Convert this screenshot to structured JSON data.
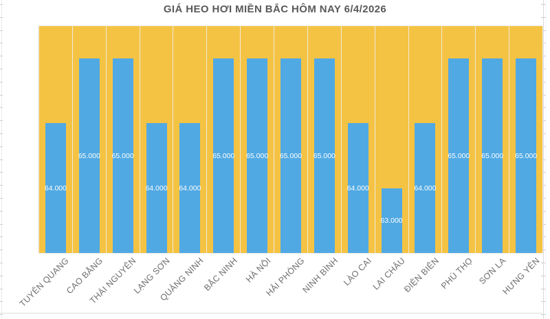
{
  "chart_data": {
    "type": "bar",
    "title": "GIÁ HEO HƠI MIỀN BẮC HÔM NAY 6/4/2026",
    "categories": [
      "TUYÊN QUANG",
      "CAO BẰNG",
      "THÁI NGUYÊN",
      "LẠNG SƠN",
      "QUẢNG NINH",
      "BẮC NINH",
      "HÀ NỘI",
      "HẢI PHÒNG",
      "NINH BÌNH",
      "LÀO CAI",
      "LAI CHÂU",
      "ĐIỆN BIÊN",
      "PHÚ THỌ",
      "SƠN LA",
      "HƯNG YÊN"
    ],
    "values": [
      64000,
      65000,
      65000,
      64000,
      64000,
      65000,
      65000,
      65000,
      65000,
      64000,
      63000,
      64000,
      65000,
      65000,
      65000
    ],
    "value_labels": [
      "64.000",
      "65.000",
      "65.000",
      "64.000",
      "64.000",
      "65.000",
      "65.000",
      "65.000",
      "65.000",
      "64.000",
      "63.000",
      "64.000",
      "65.000",
      "65.000",
      "65.000"
    ],
    "xlabel": "",
    "ylabel": "",
    "ylim": [
      62000,
      65500
    ],
    "grid": "vertical-category-separators-only",
    "legend": "none",
    "data_label_position": "inside-center",
    "colors": {
      "plot_background": "#F5C343",
      "bar": "#50A9E3",
      "bar_label": "#FFFFFF",
      "title": "#595959",
      "axis_label": "#6E6E6E",
      "separator": "#EEEEEE"
    }
  }
}
